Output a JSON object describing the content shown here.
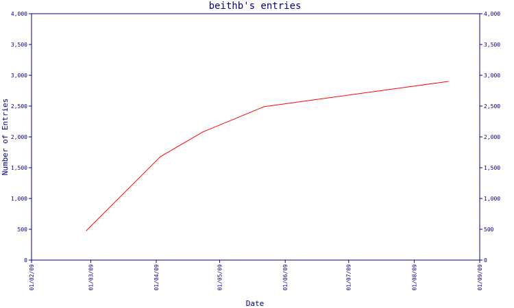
{
  "chart_data": {
    "type": "line",
    "title": "beithb's entries",
    "xlabel": "Date",
    "ylabel": "Number of Entries",
    "ylim": [
      0,
      4000
    ],
    "yticks": [
      0,
      500,
      1000,
      1500,
      2000,
      2500,
      3000,
      3500,
      4000
    ],
    "ytick_labels": [
      "0",
      "500",
      "1,000",
      "1,500",
      "2,000",
      "2,500",
      "3,000",
      "3,500",
      "4,000"
    ],
    "xlim": [
      "2009-02-01",
      "2009-09-01"
    ],
    "xticks": [
      "2009-02-01",
      "2009-03-01",
      "2009-04-01",
      "2009-05-01",
      "2009-06-01",
      "2009-07-01",
      "2009-08-01",
      "2009-09-01"
    ],
    "xtick_labels": [
      "01/02/09",
      "01/03/09",
      "01/04/09",
      "01/05/09",
      "01/06/09",
      "01/07/09",
      "01/08/09",
      "01/09/09"
    ],
    "series": [
      {
        "color": "#ff0000",
        "x": [
          "2009-02-27",
          "2009-04-03",
          "2009-04-23",
          "2009-05-22",
          "2009-08-17"
        ],
        "y": [
          480,
          1680,
          2080,
          2490,
          2900
        ]
      }
    ],
    "grid": false,
    "right_axis": true,
    "colors": {
      "axis": "#000080",
      "text": "#000080",
      "line": "#ff0000",
      "background": "#ffffff"
    }
  }
}
